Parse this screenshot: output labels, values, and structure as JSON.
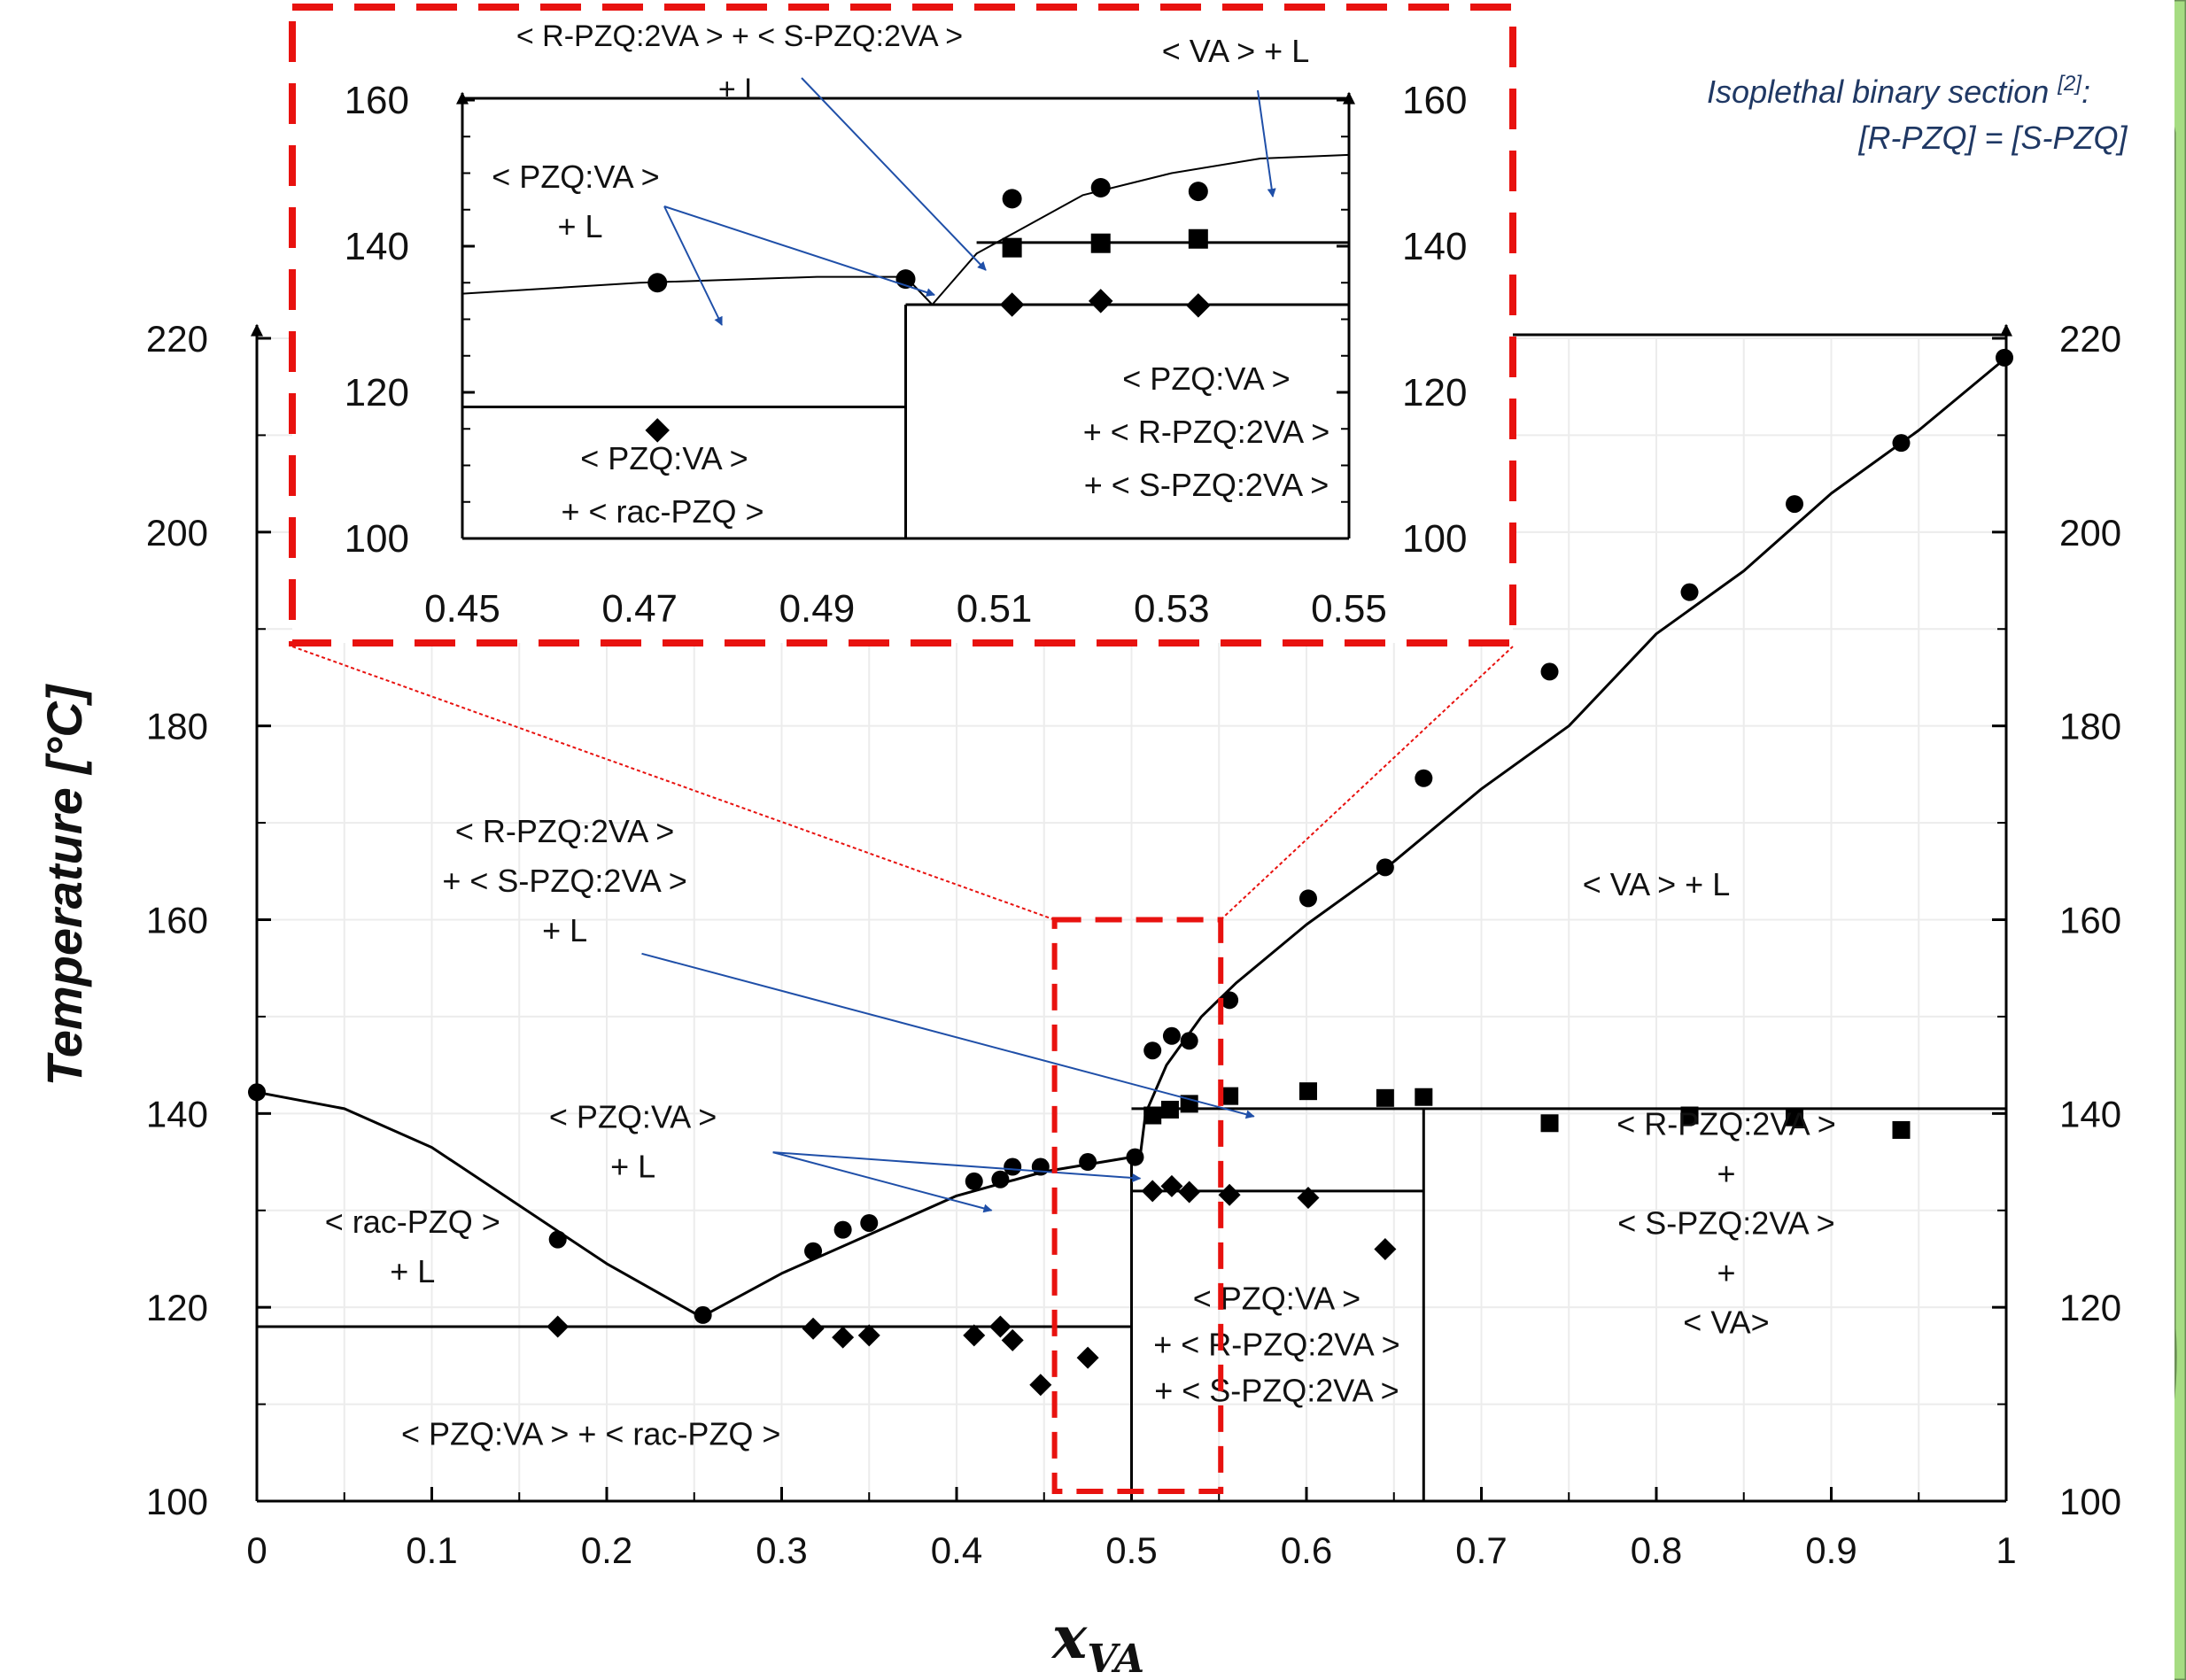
{
  "chart_data": [
    {
      "type": "scatter",
      "title": "",
      "xlabel": "x",
      "xlabel_subscript": "VA",
      "ylabel": "Temperature [°C]",
      "xlim": [
        0,
        1
      ],
      "ylim": [
        100,
        220
      ],
      "x_ticks": [
        "0",
        "0.1",
        "0.2",
        "0.3",
        "0.4",
        "0.5",
        "0.6",
        "0.7",
        "0.8",
        "0.9",
        "1"
      ],
      "y_ticks": [
        "100",
        "120",
        "140",
        "160",
        "180",
        "200",
        "220"
      ],
      "grid": true,
      "series": [
        {
          "marker": "circle",
          "points": [
            [
              0,
              142.2
            ],
            [
              0.172,
              127
            ],
            [
              0.255,
              119.2
            ],
            [
              0.318,
              125.8
            ],
            [
              0.335,
              128
            ],
            [
              0.35,
              128.7
            ],
            [
              0.41,
              133
            ],
            [
              0.425,
              133.2
            ],
            [
              0.432,
              134.5
            ],
            [
              0.448,
              134.5
            ],
            [
              0.475,
              135
            ],
            [
              0.502,
              135.5
            ],
            [
              0.512,
              146.5
            ],
            [
              0.523,
              148
            ],
            [
              0.533,
              147.5
            ],
            [
              0.556,
              151.7
            ],
            [
              0.601,
              162.2
            ],
            [
              0.645,
              165.4
            ],
            [
              0.667,
              174.6
            ],
            [
              0.739,
              185.6
            ],
            [
              0.819,
              193.8
            ],
            [
              0.879,
              202.9
            ],
            [
              0.94,
              209.2
            ],
            [
              0.999,
              218
            ]
          ]
        },
        {
          "marker": "square",
          "points": [
            [
              0.512,
              139.8
            ],
            [
              0.522,
              140.4
            ],
            [
              0.533,
              141
            ],
            [
              0.556,
              141.8
            ],
            [
              0.601,
              142.3
            ],
            [
              0.645,
              141.6
            ],
            [
              0.667,
              141.7
            ],
            [
              0.739,
              139
            ],
            [
              0.819,
              139.8
            ],
            [
              0.879,
              139.6
            ],
            [
              0.94,
              138.3
            ]
          ]
        },
        {
          "marker": "diamond",
          "points": [
            [
              0.172,
              118
            ],
            [
              0.318,
              117.8
            ],
            [
              0.335,
              116.9
            ],
            [
              0.35,
              117.1
            ],
            [
              0.41,
              117.1
            ],
            [
              0.425,
              118
            ],
            [
              0.432,
              116.6
            ],
            [
              0.448,
              112
            ],
            [
              0.475,
              114.8
            ],
            [
              0.512,
              132
            ],
            [
              0.523,
              132.5
            ],
            [
              0.533,
              131.9
            ],
            [
              0.556,
              131.6
            ],
            [
              0.601,
              131.3
            ],
            [
              0.645,
              126
            ]
          ]
        }
      ],
      "lines": {
        "liquidus_rac": [
          [
            0,
            142.2
          ],
          [
            0.05,
            140.5
          ],
          [
            0.1,
            136.5
          ],
          [
            0.15,
            130.5
          ],
          [
            0.2,
            124.5
          ],
          [
            0.254,
            119
          ]
        ],
        "liquidus_pzqva": [
          [
            0.254,
            119
          ],
          [
            0.3,
            123.5
          ],
          [
            0.35,
            127.5
          ],
          [
            0.4,
            131.5
          ],
          [
            0.45,
            134
          ],
          [
            0.5,
            135.5
          ],
          [
            0.505,
            135.7
          ]
        ],
        "liquidus_va": [
          [
            0.505,
            135.7
          ],
          [
            0.508,
            140
          ],
          [
            0.52,
            145
          ],
          [
            0.54,
            150
          ],
          [
            0.56,
            153.5
          ],
          [
            0.6,
            159.5
          ],
          [
            0.65,
            166
          ],
          [
            0.7,
            173.5
          ],
          [
            0.75,
            180
          ],
          [
            0.8,
            189.5
          ],
          [
            0.85,
            196
          ],
          [
            0.9,
            204
          ],
          [
            0.95,
            210.5
          ],
          [
            1,
            218
          ]
        ],
        "eutectic_118": [
          [
            0,
            118
          ],
          [
            0.5,
            118
          ]
        ],
        "peritectic_132": [
          [
            0.5,
            132
          ],
          [
            0.667,
            132
          ]
        ],
        "solvus_141": [
          [
            0.5,
            140.5
          ],
          [
            1,
            140.5
          ]
        ],
        "x_0_5": [
          [
            0.5,
            100
          ],
          [
            0.5,
            135.7
          ]
        ],
        "x_0_667": [
          [
            0.667,
            100
          ],
          [
            0.667,
            140.5
          ]
        ]
      },
      "regions": {
        "rac_l": [
          "< rac-PZQ >",
          "+ L"
        ],
        "pzqva_l": [
          "< PZQ:VA >",
          "+ L"
        ],
        "rs_l": [
          "< R-PZQ:2VA >",
          "+ < S-PZQ:2VA >",
          "+ L"
        ],
        "va_l": "< VA > + L",
        "pzqva_rac": "< PZQ:VA > + < rac-PZQ >",
        "pzqva_r_s": [
          "< PZQ:VA >",
          "+ < R-PZQ:2VA >",
          "+ < S-PZQ:2VA >"
        ],
        "r_s_va": [
          "< R-PZQ:2VA >",
          "+",
          "< S-PZQ:2VA >",
          "+",
          "< VA>"
        ]
      }
    },
    {
      "type": "scatter",
      "title": "",
      "xlim": [
        0.45,
        0.55
      ],
      "ylim": [
        100,
        160
      ],
      "x_ticks": [
        "0.45",
        "0.47",
        "0.49",
        "0.51",
        "0.53",
        "0.55"
      ],
      "y_ticks": [
        "100",
        "120",
        "140",
        "160"
      ],
      "series": [
        {
          "marker": "circle",
          "points": [
            [
              0.472,
              135
            ],
            [
              0.5,
              135.5
            ],
            [
              0.512,
              146.5
            ],
            [
              0.522,
              148
            ],
            [
              0.533,
              147.5
            ]
          ]
        },
        {
          "marker": "square",
          "points": [
            [
              0.512,
              139.8
            ],
            [
              0.522,
              140.4
            ],
            [
              0.533,
              141
            ]
          ]
        },
        {
          "marker": "diamond",
          "points": [
            [
              0.472,
              114.8
            ],
            [
              0.512,
              132
            ],
            [
              0.522,
              132.5
            ],
            [
              0.533,
              131.9
            ]
          ]
        }
      ],
      "lines": {
        "liquidus_left": [
          [
            0.45,
            133.5
          ],
          [
            0.47,
            135
          ],
          [
            0.49,
            135.8
          ],
          [
            0.5,
            135.8
          ],
          [
            0.503,
            132
          ]
        ],
        "liquidus_right": [
          [
            0.503,
            132
          ],
          [
            0.508,
            139
          ],
          [
            0.52,
            147
          ],
          [
            0.53,
            150
          ],
          [
            0.54,
            152
          ],
          [
            0.55,
            152.5
          ]
        ],
        "eutectic_118": [
          [
            0.45,
            118
          ],
          [
            0.5,
            118
          ]
        ],
        "peritectic_132": [
          [
            0.5,
            132
          ],
          [
            0.55,
            132
          ]
        ],
        "solvus_141": [
          [
            0.508,
            140.5
          ],
          [
            0.55,
            140.5
          ]
        ],
        "x_0_5": [
          [
            0.5,
            100
          ],
          [
            0.5,
            132
          ]
        ]
      },
      "regions": {
        "rs_l": [
          "< R-PZQ:2VA > + < S-PZQ:2VA >",
          "+ L"
        ],
        "va_l": "< VA > + L",
        "pzqva_l": [
          "< PZQ:VA >",
          "+ L"
        ],
        "pzqva_r_s": [
          "< PZQ:VA >",
          "+ < R-PZQ:2VA >",
          "+ < S-PZQ:2VA >"
        ],
        "pzqva_rac": [
          "< PZQ:VA >",
          "+ < rac-PZQ >"
        ]
      }
    }
  ],
  "annotation": {
    "line1": "Isoplethal binary section",
    "ref": "[2]",
    "line1_end": ":",
    "line2": "[R-PZQ] = [S-PZQ]"
  },
  "colors": {
    "accent_red": "#e8120f",
    "arrow_blue": "#1f4fa8",
    "bg_green": "#a6dc82",
    "note": "#1f3864"
  }
}
